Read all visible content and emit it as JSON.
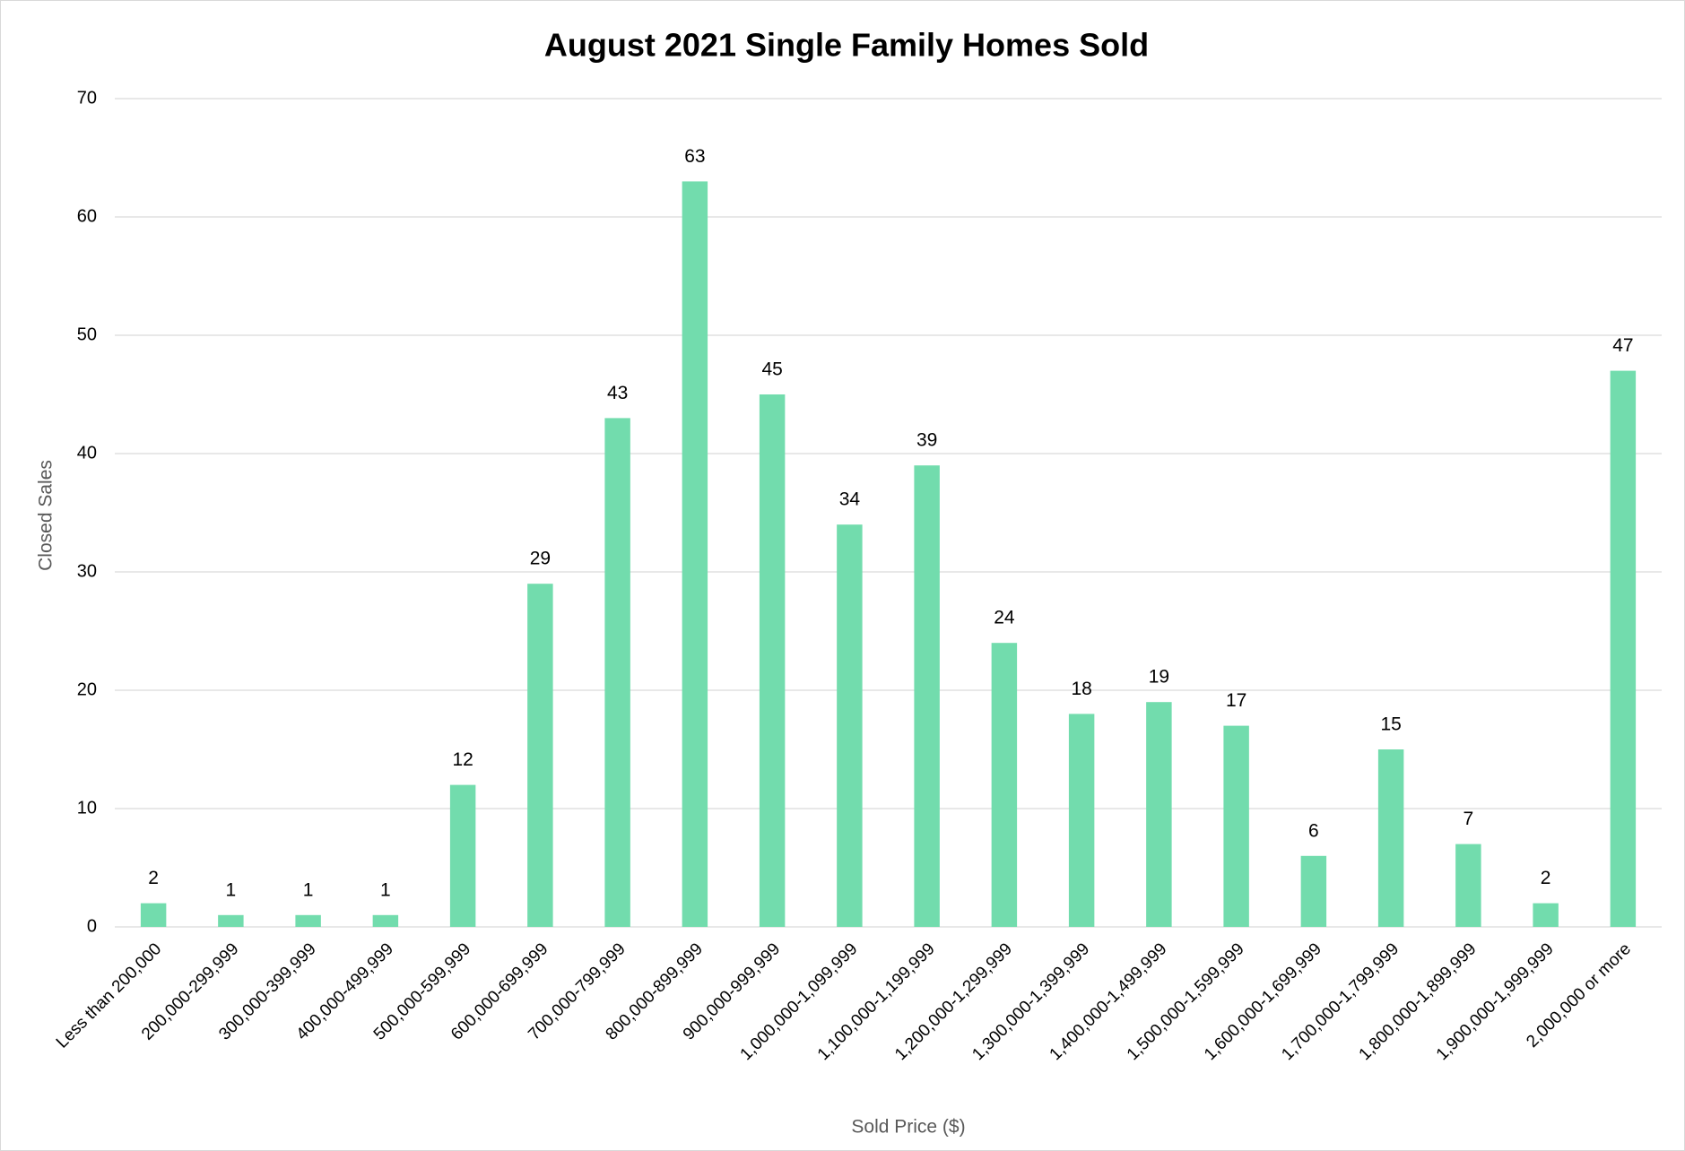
{
  "chart_data": {
    "type": "bar",
    "title": "August 2021 Single Family Homes Sold",
    "x_label": "Sold Price ($)",
    "y_label": "Closed Sales",
    "categories": [
      "Less than 200,000",
      "200,000-299,999",
      "300,000-399,999",
      "400,000-499,999",
      "500,000-599,999",
      "600,000-699,999",
      "700,000-799,999",
      "800,000-899,999",
      "900,000-999,999",
      "1,000,000-1,099,999",
      "1,100,000-1,199,999",
      "1,200,000-1,299,999",
      "1,300,000-1,399,999",
      "1,400,000-1,499,999",
      "1,500,000-1,599,999",
      "1,600,000-1,699,999",
      "1,700,000-1,799,999",
      "1,800,000-1,899,999",
      "1,900,000-1,999,999",
      "2,000,000 or more"
    ],
    "values": [
      2,
      1,
      1,
      1,
      12,
      29,
      43,
      63,
      45,
      34,
      39,
      24,
      18,
      19,
      17,
      6,
      15,
      7,
      2,
      47
    ],
    "color": "#72dcad",
    "ylim": [
      0,
      70
    ],
    "yticks": [
      0,
      10,
      20,
      30,
      40,
      50,
      60,
      70
    ],
    "grid": true
  }
}
